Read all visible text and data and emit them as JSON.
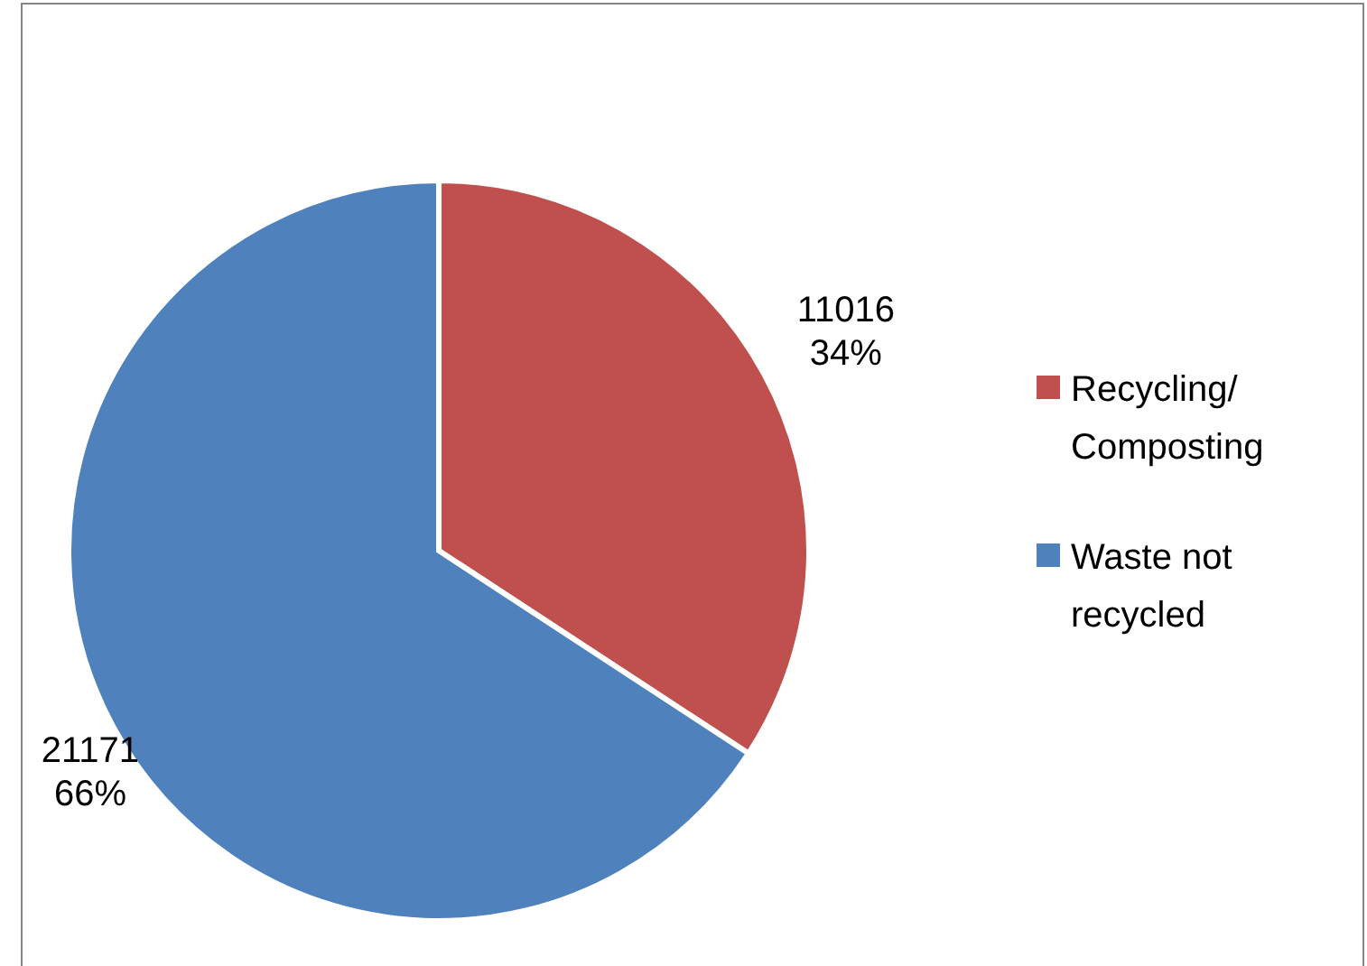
{
  "chart_data": {
    "type": "pie",
    "categories": [
      "Recycling/ Composting",
      "Waste not recycled"
    ],
    "values": [
      11016,
      21171
    ],
    "colors": [
      "#c0504d",
      "#4f81bd"
    ],
    "value_labels": [
      "11016\n34%",
      "21171\n66%"
    ],
    "legend": "right"
  }
}
